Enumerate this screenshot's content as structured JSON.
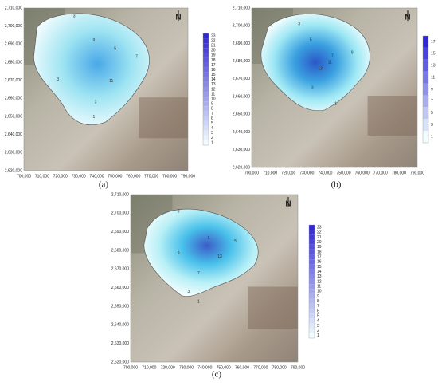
{
  "panels": [
    {
      "label": "(a)",
      "x_ticks": [
        "700,000",
        "710,000",
        "720,000",
        "730,000",
        "740,000",
        "750,000",
        "760,000",
        "770,000",
        "780,000",
        "790,000"
      ],
      "y_ticks": [
        "2,710,000",
        "2,700,000",
        "2,690,000",
        "2,680,000",
        "2,670,000",
        "2,660,000",
        "2,650,000",
        "2,640,000",
        "2,630,000",
        "2,620,000"
      ],
      "colorbar": [
        "23",
        "22",
        "21",
        "20",
        "19",
        "18",
        "17",
        "16",
        "15",
        "14",
        "13",
        "12",
        "11",
        "10",
        "9",
        "8",
        "7",
        "6",
        "5",
        "4",
        "3",
        "2",
        "1"
      ],
      "contour_labels": [
        "3",
        "5",
        "9",
        "11",
        "7",
        "3",
        "3",
        "1"
      ],
      "north": "N"
    },
    {
      "label": "(b)",
      "x_ticks": [
        "700,000",
        "710,000",
        "720,000",
        "730,000",
        "740,000",
        "750,000",
        "760,000",
        "770,000",
        "780,000",
        "790,000"
      ],
      "y_ticks": [
        "2,710,000",
        "2,700,000",
        "2,690,000",
        "2,680,000",
        "2,670,000",
        "2,660,000",
        "2,650,000",
        "2,640,000",
        "2,630,000",
        "2,620,000"
      ],
      "colorbar": [
        "17",
        "15",
        "13",
        "11",
        "9",
        "7",
        "5",
        "3",
        "1"
      ],
      "contour_labels": [
        "3",
        "5",
        "7",
        "9",
        "11",
        "13",
        "3",
        "1"
      ],
      "north": "N"
    },
    {
      "label": "(c)",
      "x_ticks": [
        "700,000",
        "710,000",
        "720,000",
        "730,000",
        "740,000",
        "750,000",
        "760,000",
        "770,000",
        "780,000",
        "790,000"
      ],
      "y_ticks": [
        "2,710,000",
        "2,700,000",
        "2,690,000",
        "2,680,000",
        "2,670,000",
        "2,660,000",
        "2,650,000",
        "2,640,000",
        "2,630,000",
        "2,620,000"
      ],
      "colorbar": [
        "23",
        "22",
        "21",
        "20",
        "19",
        "18",
        "17",
        "16",
        "15",
        "14",
        "13",
        "12",
        "11",
        "10",
        "9",
        "8",
        "7",
        "6",
        "5",
        "4",
        "3",
        "2",
        "1"
      ],
      "contour_labels": [
        "3",
        "5",
        "9",
        "13",
        "5",
        "7",
        "3",
        "1"
      ],
      "north": "N"
    }
  ]
}
